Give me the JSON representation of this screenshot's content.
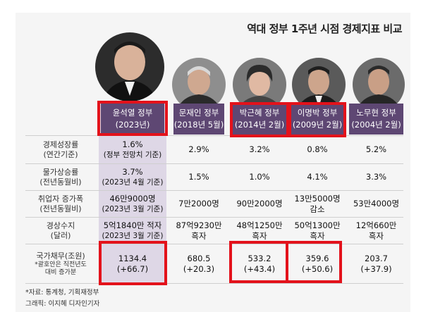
{
  "title": "역대 정부 1주년 시점 경제지표 비교",
  "columns": [
    {
      "name": "윤석열 정부",
      "date": "(2023년)"
    },
    {
      "name": "문재인 정부",
      "date": "(2018년 5월)"
    },
    {
      "name": "박근혜 정부",
      "date": "(2014년 2월)"
    },
    {
      "name": "이명박 정부",
      "date": "(2009년 2월)"
    },
    {
      "name": "노무현 정부",
      "date": "(2004년 2월)"
    }
  ],
  "rows": [
    {
      "label1": "경제성장률",
      "label2": "(연간기준)",
      "cells": [
        {
          "l1": "1.6%",
          "l2": "(정부 전망치 기준)"
        },
        {
          "l1": "2.9%",
          "l2": ""
        },
        {
          "l1": "3.2%",
          "l2": ""
        },
        {
          "l1": "0.8%",
          "l2": ""
        },
        {
          "l1": "5.2%",
          "l2": ""
        }
      ]
    },
    {
      "label1": "물가상승률",
      "label2": "(전년동월비)",
      "cells": [
        {
          "l1": "3.7%",
          "l2": "(2023년 4월 기준)"
        },
        {
          "l1": "1.5%",
          "l2": ""
        },
        {
          "l1": "1.0%",
          "l2": ""
        },
        {
          "l1": "4.1%",
          "l2": ""
        },
        {
          "l1": "3.3%",
          "l2": ""
        }
      ]
    },
    {
      "label1": "취업자 증가폭",
      "label2": "(전년동월비)",
      "cells": [
        {
          "l1": "46만9000명",
          "l2": "(2023년 3월 기준)"
        },
        {
          "l1": "7만2000명",
          "l2": ""
        },
        {
          "l1": "90만2000명",
          "l2": ""
        },
        {
          "l1": "13만5000명",
          "l2": "감소"
        },
        {
          "l1": "53만4000명",
          "l2": ""
        }
      ]
    },
    {
      "label1": "경상수지",
      "label2": "(달러)",
      "cells": [
        {
          "l1": "5억1840만 적자",
          "l2": "(2023년 3월 기준)"
        },
        {
          "l1": "87억9230만",
          "l2": "흑자"
        },
        {
          "l1": "48억1250만",
          "l2": "흑자"
        },
        {
          "l1": "50억1300만",
          "l2": "흑자"
        },
        {
          "l1": "12억660만",
          "l2": "흑자"
        }
      ]
    },
    {
      "label1": "국가채무(조원)",
      "label2": "*괄호안은 직전년도",
      "label3": "대비 증가분",
      "cells": [
        {
          "l1": "1134.4",
          "l2": "(+66.7)"
        },
        {
          "l1": "680.5",
          "l2": "(+20.3)"
        },
        {
          "l1": "533.2",
          "l2": "(+43.4)"
        },
        {
          "l1": "359.6",
          "l2": "(+50.6)"
        },
        {
          "l1": "203.7",
          "l2": "(+37.9)"
        }
      ]
    }
  ],
  "footer": {
    "source": "*자료: 통계청, 기획재정부",
    "graphic": "그래픽: 이지혜 디자인기자"
  },
  "colors": {
    "header": "#5e4773",
    "highlight_column": "#ded7e6",
    "red_box": "#e3121b"
  }
}
